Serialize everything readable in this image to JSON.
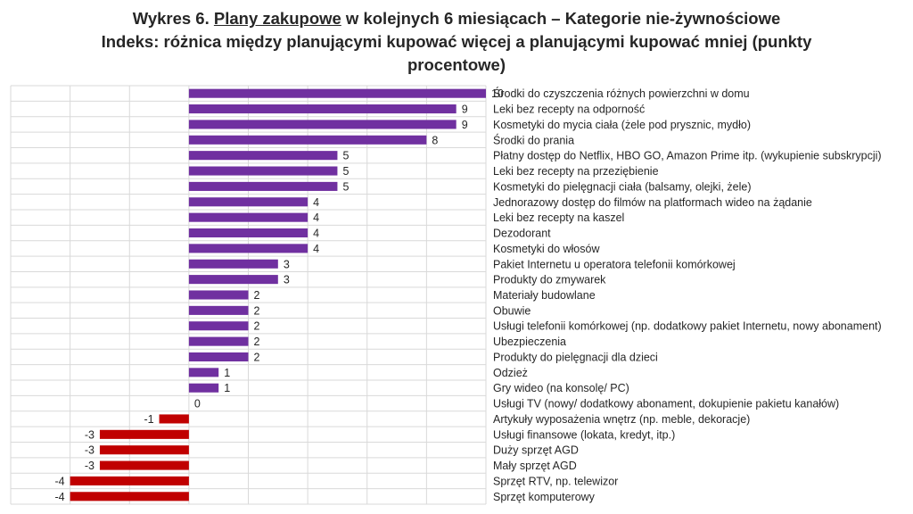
{
  "title": {
    "prefix": "Wykres 6. ",
    "underlined": "Plany zakupowe",
    "suffix": " w kolejnych 6 miesiącach – Kategorie nie-żywnościowe",
    "line2": "Indeks: różnica między planującymi kupować więcej a planującymi kupować mniej (punkty",
    "line3": "procentowe)"
  },
  "colors": {
    "positive": "#7030A0",
    "negative": "#C00000",
    "grid": "#D9D9D9"
  },
  "chart_data": {
    "type": "bar",
    "orientation": "horizontal",
    "title": "Wykres 6. Plany zakupowe w kolejnych 6 miesiącach – Kategorie nie-żywnościowe",
    "subtitle": "Indeks: różnica między planującymi kupować więcej a planującymi kupować mniej (punkty procentowe)",
    "xlim": [
      -6,
      10
    ],
    "grid": true,
    "categories": [
      "Środki do czyszczenia różnych powierzchni w domu",
      "Leki bez recepty na odporność",
      "Kosmetyki do mycia ciała (żele pod prysznic, mydło)",
      "Środki do prania",
      "Płatny dostęp do Netflix, HBO GO, Amazon Prime itp. (wykupienie subskrypcji)",
      "Leki bez recepty na przeziębienie",
      "Kosmetyki do pielęgnacji ciała (balsamy, olejki, żele)",
      "Jednorazowy dostęp do filmów na platformach wideo na żądanie",
      "Leki bez recepty na kaszel",
      "Dezodorant",
      "Kosmetyki do włosów",
      "Pakiet Internetu u operatora telefonii komórkowej",
      "Produkty do zmywarek",
      "Materiały budowlane",
      "Obuwie",
      "Usługi telefonii komórkowej (np. dodatkowy pakiet Internetu, nowy abonament)",
      "Ubezpieczenia",
      "Produkty do pielęgnacji dla dzieci",
      "Odzież",
      "Gry wideo (na konsolę/ PC)",
      "Usługi TV (nowy/ dodatkowy abonament, dokupienie pakietu kanałów)",
      "Artykuły wyposażenia wnętrz (np. meble, dekoracje)",
      "Usługi finansowe (lokata, kredyt, itp.)",
      "Duży sprzęt AGD",
      "Mały sprzęt AGD",
      "Sprzęt RTV, np. telewizor",
      "Sprzęt komputerowy"
    ],
    "values": [
      10,
      9,
      9,
      8,
      5,
      5,
      5,
      4,
      4,
      4,
      4,
      3,
      3,
      2,
      2,
      2,
      2,
      2,
      1,
      1,
      0,
      -1,
      -3,
      -3,
      -3,
      -4,
      -4
    ]
  }
}
